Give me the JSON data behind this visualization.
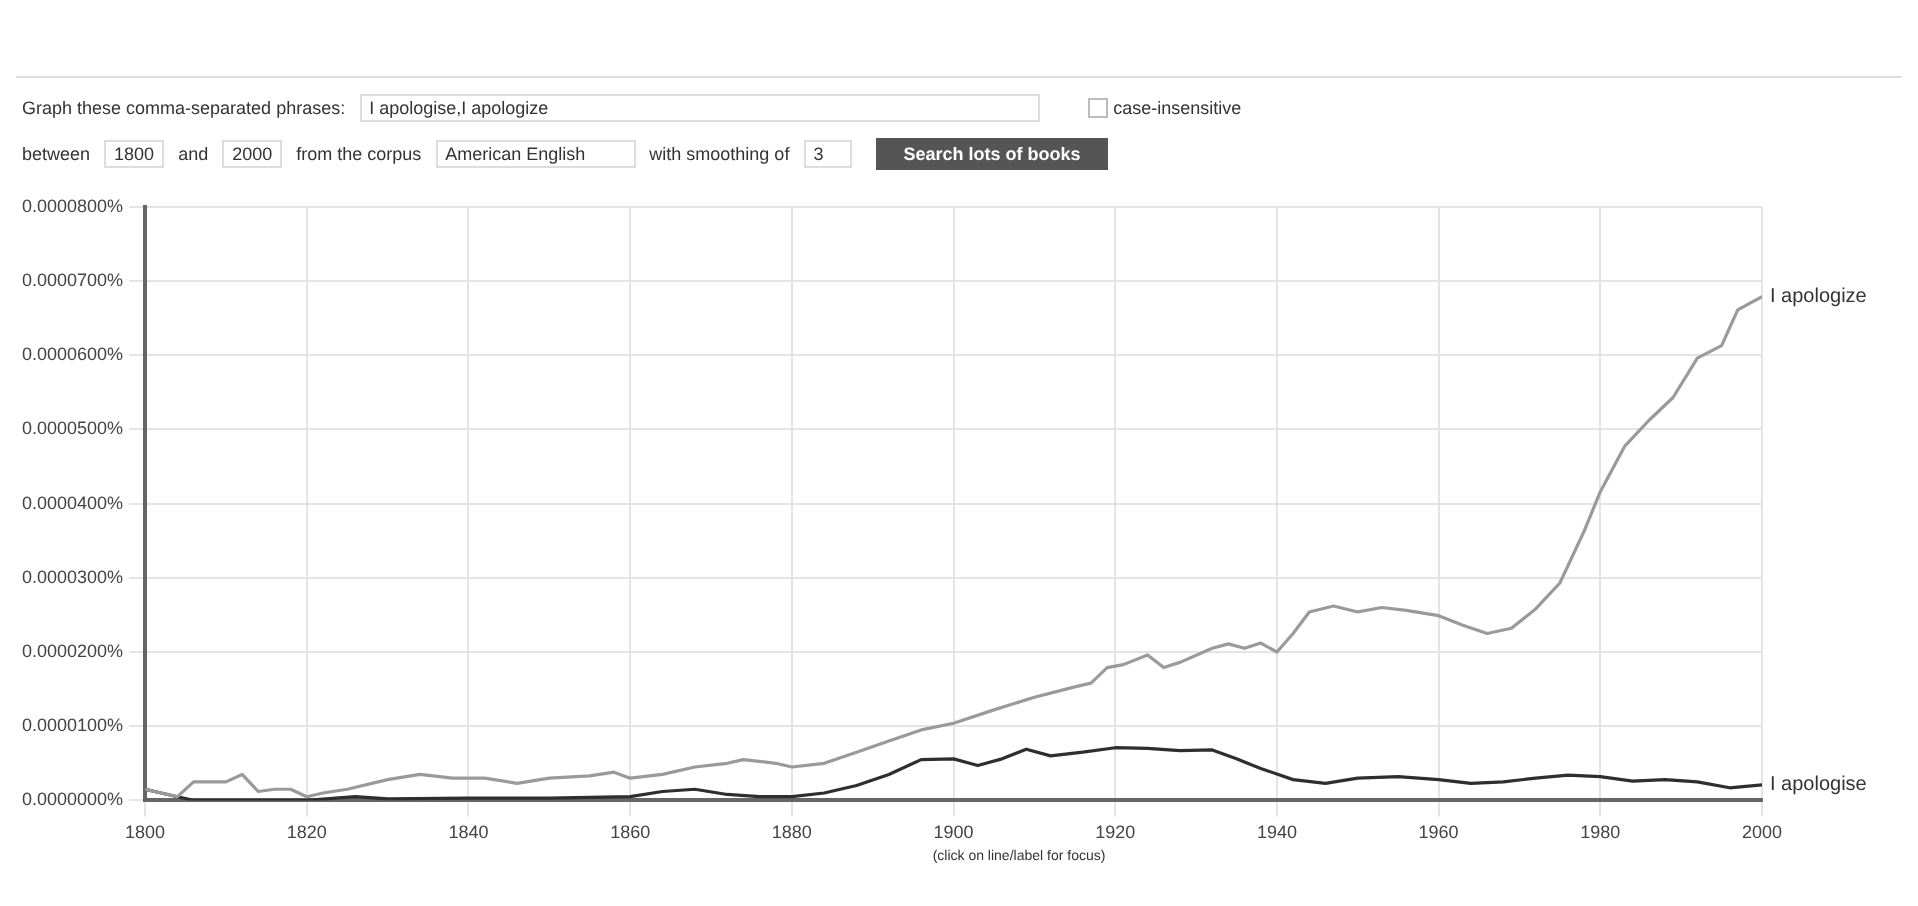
{
  "chart_data": {
    "type": "line",
    "annotations": [
      "Graph these comma-separated phrases:",
      "I apologise,I apologize",
      "case-insensitive",
      "between",
      "1800",
      "and",
      "2000",
      "from the corpus",
      "American English",
      "with smoothing of",
      "3",
      "Search lots of books",
      "(click on line/label for focus)"
    ],
    "series": [
      {
        "name": "I apologize",
        "color": "#9a9a9a",
        "x": [
          1800,
          1802,
          1804,
          1806,
          1810,
          1812,
          1814,
          1816,
          1818,
          1820,
          1822,
          1825,
          1830,
          1834,
          1838,
          1842,
          1846,
          1850,
          1855,
          1858,
          1860,
          1864,
          1868,
          1872,
          1874,
          1878,
          1880,
          1884,
          1888,
          1892,
          1896,
          1900,
          1905,
          1910,
          1915,
          1917,
          1919,
          1921,
          1924,
          1926,
          1928,
          1932,
          1934,
          1936,
          1938,
          1940,
          1942,
          1944,
          1947,
          1950,
          1953,
          1956,
          1960,
          1963,
          1966,
          1969,
          1972,
          1975,
          1978,
          1980,
          1983,
          1986,
          1989,
          1992,
          1995,
          1997,
          2000
        ],
        "values": [
          1.5e-06,
          1e-06,
          5e-07,
          2.5e-06,
          2.5e-06,
          3.5e-06,
          1.2e-06,
          1.5e-06,
          1.5e-06,
          5e-07,
          1e-06,
          1.5e-06,
          2.8e-06,
          3.5e-06,
          3e-06,
          3e-06,
          2.3e-06,
          3e-06,
          3.3e-06,
          3.8e-06,
          3e-06,
          3.5e-06,
          4.5e-06,
          5e-06,
          5.5e-06,
          5e-06,
          4.5e-06,
          5e-06,
          6.5e-06,
          8e-06,
          9.5e-06,
          1.04e-05,
          1.22e-05,
          1.39e-05,
          1.53e-05,
          1.58e-05,
          1.79e-05,
          1.83e-05,
          1.96e-05,
          1.79e-05,
          1.86e-05,
          2.05e-05,
          2.11e-05,
          2.05e-05,
          2.12e-05,
          2e-05,
          2.25e-05,
          2.54e-05,
          2.62e-05,
          2.54e-05,
          2.6e-05,
          2.56e-05,
          2.49e-05,
          2.36e-05,
          2.25e-05,
          2.32e-05,
          2.58e-05,
          2.93e-05,
          3.63e-05,
          4.16e-05,
          4.77e-05,
          5.12e-05,
          5.43e-05,
          5.96e-05,
          6.13e-05,
          6.61e-05,
          6.79e-05
        ]
      },
      {
        "name": "I apologise",
        "color": "#2e2e2e",
        "x": [
          1800,
          1802,
          1804,
          1806,
          1820,
          1826,
          1830,
          1840,
          1850,
          1860,
          1864,
          1868,
          1872,
          1876,
          1880,
          1884,
          1888,
          1892,
          1896,
          1900,
          1903,
          1906,
          1909,
          1912,
          1916,
          1920,
          1924,
          1928,
          1932,
          1935,
          1938,
          1942,
          1946,
          1950,
          1955,
          1960,
          1964,
          1968,
          1972,
          1976,
          1980,
          1984,
          1988,
          1992,
          1996,
          2000
        ],
        "values": [
          1.5e-06,
          1e-06,
          5e-07,
          0,
          0,
          5e-07,
          2e-07,
          3e-07,
          3e-07,
          5e-07,
          1.2e-06,
          1.5e-06,
          8e-07,
          5e-07,
          5e-07,
          1e-06,
          2e-06,
          3.5e-06,
          5.5e-06,
          5.6e-06,
          4.7e-06,
          5.6e-06,
          6.9e-06,
          6e-06,
          6.5e-06,
          7.1e-06,
          7e-06,
          6.7e-06,
          6.8e-06,
          5.6e-06,
          4.3e-06,
          2.8e-06,
          2.3e-06,
          3e-06,
          3.2e-06,
          2.8e-06,
          2.3e-06,
          2.5e-06,
          3e-06,
          3.4e-06,
          3.2e-06,
          2.6e-06,
          2.8e-06,
          2.5e-06,
          1.7e-06,
          2.1e-06
        ]
      }
    ],
    "xlim": [
      1800,
      2000
    ],
    "xticks": [
      1800,
      1820,
      1840,
      1860,
      1880,
      1900,
      1920,
      1940,
      1960,
      1980,
      2000
    ],
    "ylim": [
      0,
      8e-05
    ],
    "yticks": [
      {
        "value": 0,
        "label": "0.0000000%"
      },
      {
        "value": 1e-05,
        "label": "0.0000100%"
      },
      {
        "value": 2e-05,
        "label": "0.0000200%"
      },
      {
        "value": 3e-05,
        "label": "0.0000300%"
      },
      {
        "value": 4e-05,
        "label": "0.0000400%"
      },
      {
        "value": 5e-05,
        "label": "0.0000500%"
      },
      {
        "value": 6e-05,
        "label": "0.0000600%"
      },
      {
        "value": 7e-05,
        "label": "0.0000700%"
      },
      {
        "value": 8e-05,
        "label": "0.0000800%"
      }
    ],
    "grid": true,
    "legend": false,
    "marker": "none",
    "line_style": "solid"
  }
}
